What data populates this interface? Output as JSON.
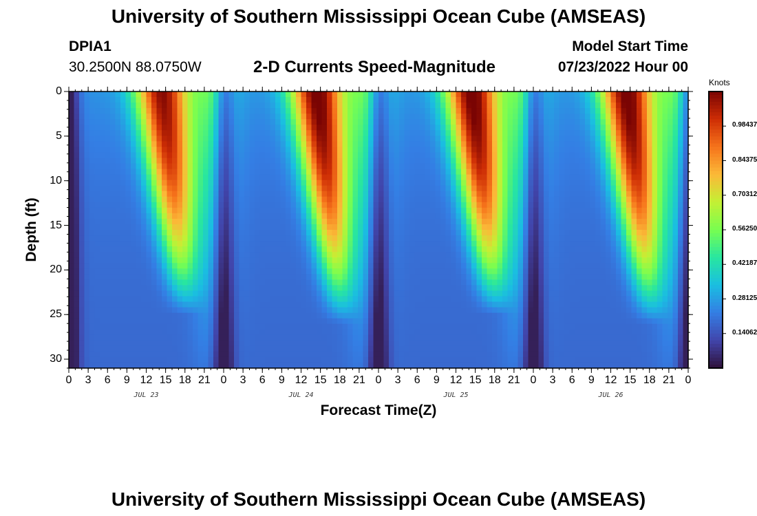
{
  "header": {
    "title": "University of Southern Mississippi Ocean Cube (AMSEAS)",
    "station_id": "DPIA1",
    "station_coords": "30.2500N  88.0750W",
    "plot_subtitle": "2-D Currents Speed-Magnitude",
    "model_start_label": "Model Start Time",
    "model_start_value": "07/23/2022 Hour 00"
  },
  "chart_data": {
    "type": "heatmap",
    "title": "2-D Currents Speed-Magnitude",
    "xlabel": "Forecast Time(Z)",
    "ylabel": "Depth (ft)",
    "x_tick_labels": [
      "0",
      "3",
      "6",
      "9",
      "12",
      "15",
      "18",
      "21",
      "0",
      "3",
      "6",
      "9",
      "12",
      "15",
      "18",
      "21",
      "0",
      "3",
      "6",
      "9",
      "12",
      "15",
      "18",
      "21",
      "0",
      "3",
      "6",
      "9",
      "12",
      "15",
      "18",
      "21",
      "0"
    ],
    "x_range_hours": [
      0,
      96
    ],
    "date_labels": [
      {
        "label": "JUL 23",
        "hour": 12
      },
      {
        "label": "JUL 24",
        "hour": 36
      },
      {
        "label": "JUL 25",
        "hour": 60
      },
      {
        "label": "JUL 26",
        "hour": 84
      }
    ],
    "y_tick_labels": [
      "0",
      "5",
      "10",
      "15",
      "20",
      "25",
      "30"
    ],
    "y_range_ft": [
      0,
      31
    ],
    "colorbar": {
      "unit_label": "Knots",
      "range": [
        0.0,
        1.125
      ],
      "tick_labels": [
        "0.98437",
        "0.84375",
        "0.70312",
        "0.56250",
        "0.42187",
        "0.28125",
        "0.14062"
      ],
      "tick_values": [
        0.98437,
        0.84375,
        0.70312,
        0.5625,
        0.42187,
        0.28125,
        0.14062
      ]
    },
    "speed_peaks": [
      {
        "hour": 16,
        "depth_top_ft": 0,
        "depth_bottom_ft": 21,
        "max_knots": 1.05
      },
      {
        "hour": 40,
        "depth_top_ft": 0,
        "depth_bottom_ft": 22,
        "max_knots": 1.1
      },
      {
        "hour": 64,
        "depth_top_ft": 0,
        "depth_bottom_ft": 21,
        "max_knots": 1.1
      },
      {
        "hour": 88,
        "depth_top_ft": 0,
        "depth_bottom_ft": 22,
        "max_knots": 1.1
      }
    ],
    "speed_minima_hours": [
      0,
      24,
      48,
      72,
      96
    ]
  },
  "footer": {
    "title": "University of Southern Mississippi Ocean Cube (AMSEAS)"
  }
}
